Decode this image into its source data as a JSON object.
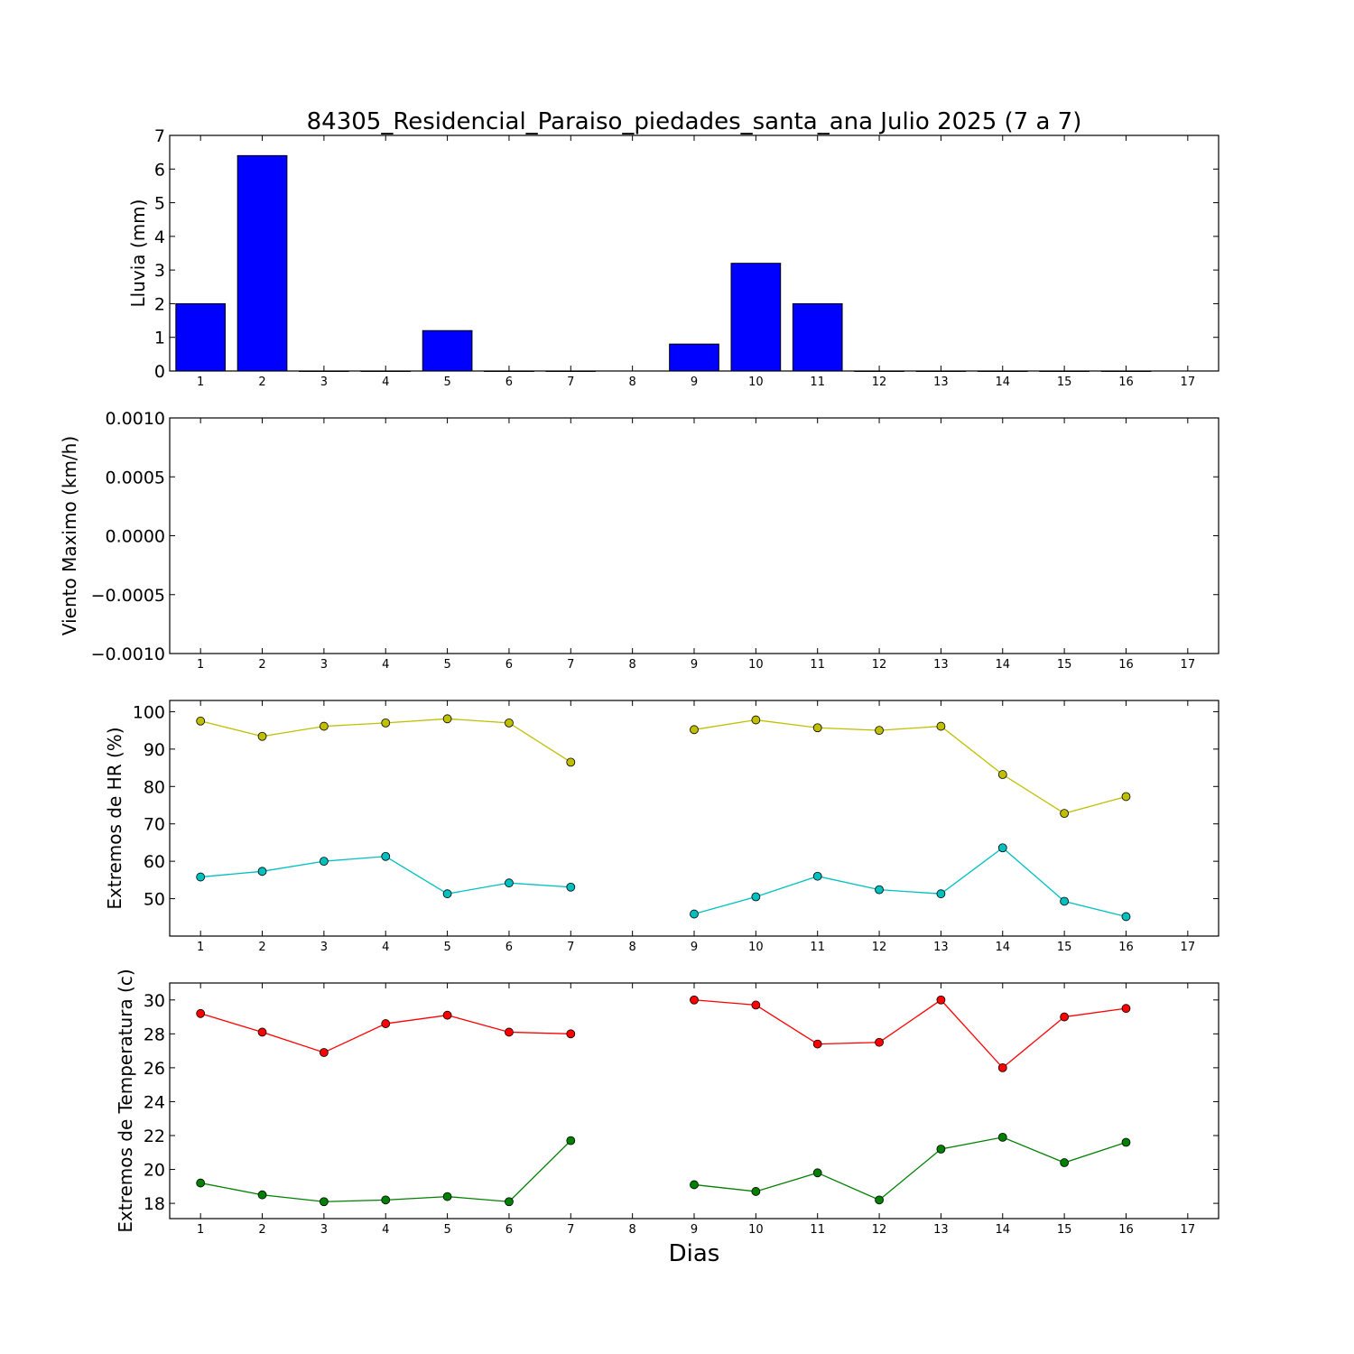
{
  "figure": {
    "title": "84305_Residencial_Paraiso_piedades_santa_ana Julio 2025  (7 a 7)",
    "xlabel": "Dias"
  },
  "chart_data": [
    {
      "type": "bar",
      "ylabel": "Lluvia (mm)",
      "ylim": [
        0,
        7
      ],
      "yticks": [
        "0",
        "1",
        "2",
        "3",
        "4",
        "5",
        "6",
        "7"
      ],
      "xticks": [
        "1",
        "2",
        "3",
        "4",
        "5",
        "6",
        "7",
        "8",
        "9",
        "10",
        "11",
        "12",
        "13",
        "14",
        "15",
        "16",
        "17"
      ],
      "xlim": [
        0.5,
        17.5
      ],
      "grid": false,
      "colors": [
        "#0000ff"
      ],
      "series": [
        {
          "x": [
            1,
            2,
            3,
            4,
            5,
            6,
            7,
            8,
            9,
            10,
            11,
            12,
            13,
            14,
            15,
            16
          ],
          "values": [
            2.0,
            6.4,
            0,
            0,
            1.2,
            0,
            0,
            null,
            0.8,
            3.2,
            2.0,
            0,
            0,
            0,
            0,
            0
          ]
        }
      ]
    },
    {
      "type": "line",
      "ylabel": "Viento Maximo (km/h)",
      "ylim": [
        -0.001,
        0.001
      ],
      "yticks": [
        "−0.0010",
        "−0.0005",
        "0.0000",
        "0.0005",
        "0.0010"
      ],
      "xticks": [
        "1",
        "2",
        "3",
        "4",
        "5",
        "6",
        "7",
        "8",
        "9",
        "10",
        "11",
        "12",
        "13",
        "14",
        "15",
        "16",
        "17"
      ],
      "xlim": [
        0.5,
        17.5
      ],
      "grid": false,
      "series": []
    },
    {
      "type": "line",
      "ylabel": "Extremos de HR (%)",
      "ylim": [
        40,
        103
      ],
      "yticks": [
        "50",
        "60",
        "70",
        "80",
        "90",
        "100"
      ],
      "xticks": [
        "1",
        "2",
        "3",
        "4",
        "5",
        "6",
        "7",
        "8",
        "9",
        "10",
        "11",
        "12",
        "13",
        "14",
        "15",
        "16",
        "17"
      ],
      "xlim": [
        0.5,
        17.5
      ],
      "grid": false,
      "colors": [
        "#bfbf00",
        "#00bfbf"
      ],
      "series": [
        {
          "x": [
            1,
            2,
            3,
            4,
            5,
            6,
            7,
            8,
            9,
            10,
            11,
            12,
            13,
            14,
            15,
            16
          ],
          "values": [
            97.5,
            93.4,
            96.1,
            97.0,
            98.1,
            97.0,
            86.5,
            null,
            95.2,
            97.8,
            95.7,
            95.0,
            96.1,
            83.2,
            72.8,
            77.3
          ]
        },
        {
          "x": [
            1,
            2,
            3,
            4,
            5,
            6,
            7,
            8,
            9,
            10,
            11,
            12,
            13,
            14,
            15,
            16
          ],
          "values": [
            55.8,
            57.3,
            60.0,
            61.3,
            51.3,
            54.2,
            53.1,
            null,
            45.9,
            50.5,
            56.0,
            52.4,
            51.3,
            63.6,
            49.3,
            45.2
          ]
        }
      ]
    },
    {
      "type": "line",
      "ylabel": "Extremos de Temperatura (c)",
      "ylim": [
        17.1,
        31.0
      ],
      "yticks": [
        "18",
        "20",
        "22",
        "24",
        "26",
        "28",
        "30"
      ],
      "xticks": [
        "1",
        "2",
        "3",
        "4",
        "5",
        "6",
        "7",
        "8",
        "9",
        "10",
        "11",
        "12",
        "13",
        "14",
        "15",
        "16",
        "17"
      ],
      "xlim": [
        0.5,
        17.5
      ],
      "grid": false,
      "colors": [
        "#ff0000",
        "#008000"
      ],
      "series": [
        {
          "x": [
            1,
            2,
            3,
            4,
            5,
            6,
            7,
            8,
            9,
            10,
            11,
            12,
            13,
            14,
            15,
            16
          ],
          "values": [
            29.2,
            28.1,
            26.9,
            28.6,
            29.1,
            28.1,
            28.0,
            null,
            30.0,
            29.7,
            27.4,
            27.5,
            30.0,
            26.0,
            29.0,
            29.5
          ]
        },
        {
          "x": [
            1,
            2,
            3,
            4,
            5,
            6,
            7,
            8,
            9,
            10,
            11,
            12,
            13,
            14,
            15,
            16
          ],
          "values": [
            19.2,
            18.5,
            18.1,
            18.2,
            18.4,
            18.1,
            21.7,
            null,
            19.1,
            18.7,
            19.8,
            18.2,
            21.2,
            21.9,
            20.4,
            21.6
          ]
        }
      ]
    }
  ]
}
